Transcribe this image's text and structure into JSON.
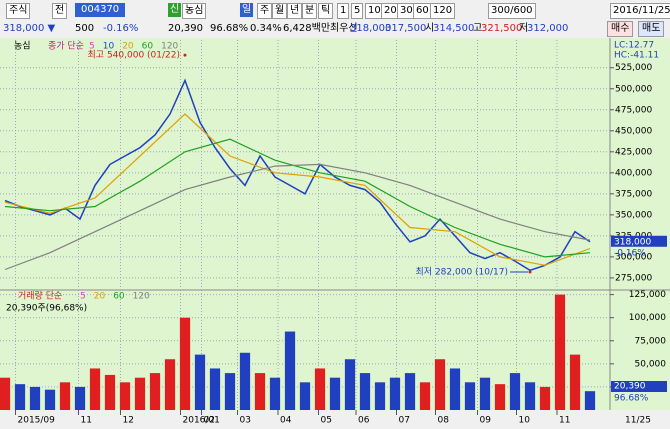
{
  "toolbar": {
    "items": [
      "주식",
      "전",
      "004370",
      "신",
      "농심",
      "일",
      "주",
      "월",
      "년",
      "분",
      "틱",
      "1",
      "5",
      "10",
      "20",
      "30",
      "60",
      "120",
      "300/600",
      "2016/11/25"
    ]
  },
  "quote": {
    "items": [
      "318,000 ▼",
      "500",
      "-0.16%",
      "20,390",
      "96.68%",
      "0.34%",
      "6,428백만",
      "최우선",
      "318,000",
      "317,500",
      "시",
      "314,500",
      "고",
      "321,500",
      "저",
      "312,000"
    ],
    "buttons": [
      "매수",
      "매도"
    ]
  },
  "chart_data": [
    {
      "type": "line",
      "title": "농심",
      "subtitle": "종가 단순",
      "ma_legend": [
        {
          "label": "5",
          "color": "#e040c0"
        },
        {
          "label": "10",
          "color": "#2040e0"
        },
        {
          "label": "20",
          "color": "#e0a000"
        },
        {
          "label": "60",
          "color": "#20a020"
        },
        {
          "label": "120",
          "color": "#808080"
        }
      ],
      "series": [
        {
          "name": "종가",
          "color": "#2040c0",
          "x": [
            0,
            1,
            2,
            3,
            4,
            5,
            6,
            7,
            8,
            9,
            10,
            11,
            12,
            13,
            14,
            15,
            16,
            17,
            18,
            19,
            20,
            21,
            22,
            23,
            24,
            25,
            26,
            27,
            28,
            29,
            30,
            31,
            32,
            33,
            34,
            35,
            36,
            37,
            38,
            39
          ],
          "values": [
            367000,
            360000,
            355000,
            350000,
            358000,
            345000,
            385000,
            410000,
            420000,
            430000,
            445000,
            470000,
            510000,
            460000,
            430000,
            405000,
            385000,
            420000,
            395000,
            385000,
            375000,
            410000,
            395000,
            385000,
            380000,
            365000,
            340000,
            318000,
            325000,
            345000,
            325000,
            305000,
            298000,
            305000,
            295000,
            284000,
            290000,
            300000,
            330000,
            318000
          ]
        },
        {
          "name": "20",
          "color": "#e0a000",
          "x": [
            0,
            3,
            6,
            9,
            12,
            15,
            18,
            21,
            24,
            27,
            30,
            33,
            36,
            39
          ],
          "values": [
            365000,
            352000,
            370000,
            420000,
            470000,
            420000,
            400000,
            395000,
            385000,
            335000,
            330000,
            300000,
            290000,
            310000
          ]
        },
        {
          "name": "60",
          "color": "#20a020",
          "x": [
            0,
            3,
            6,
            9,
            12,
            15,
            18,
            21,
            24,
            27,
            30,
            33,
            36,
            39
          ],
          "values": [
            360000,
            355000,
            360000,
            390000,
            425000,
            440000,
            415000,
            400000,
            390000,
            360000,
            335000,
            315000,
            300000,
            305000
          ]
        },
        {
          "name": "120",
          "color": "#808080",
          "x": [
            0,
            3,
            6,
            9,
            12,
            15,
            18,
            21,
            24,
            27,
            30,
            33,
            36,
            39
          ],
          "values": [
            285000,
            305000,
            330000,
            355000,
            380000,
            395000,
            408000,
            410000,
            400000,
            385000,
            365000,
            345000,
            330000,
            320000
          ]
        }
      ],
      "xlim": [
        0,
        39
      ],
      "ylim": [
        263000,
        558000
      ],
      "yticks": [
        {
          "value": 275000,
          "label": "275,000"
        },
        {
          "value": 300000,
          "label": "300,000"
        },
        {
          "value": 325000,
          "label": "325,000"
        },
        {
          "value": 350000,
          "label": "350,000"
        },
        {
          "value": 375000,
          "label": "375,000"
        },
        {
          "value": 400000,
          "label": "400,000"
        },
        {
          "value": 425000,
          "label": "425,000"
        },
        {
          "value": 450000,
          "label": "450,000"
        },
        {
          "value": 475000,
          "label": "475,000"
        },
        {
          "value": 500000,
          "label": "500,000"
        },
        {
          "value": 525000,
          "label": "525,000"
        }
      ],
      "annotations": [
        {
          "text": "최고 540,000 (01/22)",
          "x": 12,
          "y": 540000
        },
        {
          "text": "최저 282,000 (10/17)",
          "x": 35,
          "y": 282000
        }
      ],
      "lc": "LC:12.77",
      "hc": "HC:-41.11",
      "last_label": "318,000",
      "last_change": "-0.16%",
      "grid": true
    },
    {
      "type": "bar",
      "title": "거래량 단순",
      "subtitle": "20,390주(96,68%)",
      "ma_legend": [
        {
          "label": "5",
          "color": "#e040c0"
        },
        {
          "label": "20",
          "color": "#e0a000"
        },
        {
          "label": "60",
          "color": "#20a020"
        },
        {
          "label": "120",
          "color": "#808080"
        }
      ],
      "x": [
        0,
        1,
        2,
        3,
        4,
        5,
        6,
        7,
        8,
        9,
        10,
        11,
        12,
        13,
        14,
        15,
        16,
        17,
        18,
        19,
        20,
        21,
        22,
        23,
        24,
        25,
        26,
        27,
        28,
        29,
        30,
        31,
        32,
        33,
        34,
        35,
        36,
        37,
        38,
        39
      ],
      "values": [
        35000,
        28000,
        25000,
        22000,
        30000,
        25000,
        45000,
        38000,
        30000,
        35000,
        40000,
        55000,
        100000,
        60000,
        45000,
        40000,
        62000,
        40000,
        35000,
        85000,
        30000,
        45000,
        35000,
        55000,
        40000,
        30000,
        35000,
        40000,
        30000,
        55000,
        45000,
        30000,
        35000,
        28000,
        40000,
        30000,
        25000,
        125000,
        60000,
        20390
      ],
      "up_color": "#e02020",
      "down_color": "#2040c0",
      "xlim": [
        0,
        39
      ],
      "ylim": [
        0,
        130000
      ],
      "yticks": [
        {
          "value": 25000,
          "label": "25,000"
        },
        {
          "value": 50000,
          "label": "50,000"
        },
        {
          "value": 75000,
          "label": "75,000"
        },
        {
          "value": 100000,
          "label": "100,000"
        },
        {
          "value": 125000,
          "label": "125,000"
        }
      ],
      "last_label": "20,390",
      "last_pct": "96.68%",
      "grid": true
    }
  ],
  "x_axis": {
    "ticks": [
      {
        "value": 0.7,
        "label": "2015/09"
      },
      {
        "value": 4.9,
        "label": "11"
      },
      {
        "value": 7.7,
        "label": "12"
      },
      {
        "value": 11.7,
        "label": "2016/01"
      },
      {
        "value": 13.1,
        "label": "02"
      },
      {
        "value": 15.5,
        "label": "03"
      },
      {
        "value": 18.2,
        "label": "04"
      },
      {
        "value": 20.9,
        "label": "05"
      },
      {
        "value": 23.4,
        "label": "06"
      },
      {
        "value": 26.1,
        "label": "07"
      },
      {
        "value": 28.7,
        "label": "08"
      },
      {
        "value": 31.5,
        "label": "09"
      },
      {
        "value": 34.1,
        "label": "10"
      },
      {
        "value": 36.8,
        "label": "11"
      }
    ],
    "end_label": "11/25"
  }
}
